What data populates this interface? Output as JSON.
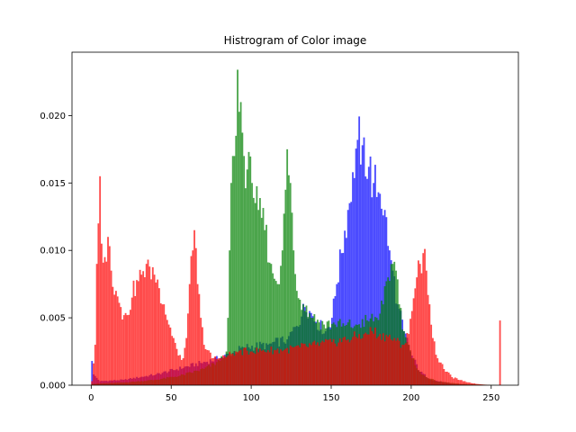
{
  "chart_data": {
    "type": "bar",
    "title": "Histrogram of Color image",
    "xlabel": "",
    "ylabel": "",
    "xlim": [
      -12,
      267
    ],
    "ylim": [
      0,
      0.0247
    ],
    "xticks": [
      0,
      50,
      100,
      150,
      200,
      250
    ],
    "yticks": [
      0.0,
      0.005,
      0.01,
      0.015,
      0.02
    ],
    "ytick_labels": [
      "0.000",
      "0.005",
      "0.010",
      "0.015",
      "0.020"
    ],
    "grid": false,
    "legend": "none",
    "bins": 256,
    "series": [
      {
        "color": "#0000ff",
        "alpha": 0.7,
        "control_points": [
          [
            0,
            0.0018
          ],
          [
            1,
            0.0008
          ],
          [
            5,
            0.0003
          ],
          [
            20,
            0.0004
          ],
          [
            40,
            0.0008
          ],
          [
            60,
            0.0014
          ],
          [
            80,
            0.002
          ],
          [
            95,
            0.0028
          ],
          [
            110,
            0.003
          ],
          [
            122,
            0.0034
          ],
          [
            128,
            0.0044
          ],
          [
            133,
            0.0058
          ],
          [
            136,
            0.0055
          ],
          [
            140,
            0.0047
          ],
          [
            146,
            0.004
          ],
          [
            150,
            0.005
          ],
          [
            153,
            0.0075
          ],
          [
            156,
            0.0098
          ],
          [
            160,
            0.013
          ],
          [
            163,
            0.0158
          ],
          [
            166,
            0.0182
          ],
          [
            169,
            0.0178
          ],
          [
            173,
            0.0162
          ],
          [
            176,
            0.015
          ],
          [
            180,
            0.0142
          ],
          [
            183,
            0.013
          ],
          [
            186,
            0.01
          ],
          [
            188,
            0.0085
          ],
          [
            191,
            0.006
          ],
          [
            195,
            0.004
          ],
          [
            200,
            0.0022
          ],
          [
            205,
            0.001
          ],
          [
            212,
            0.0004
          ],
          [
            225,
            0.0001
          ],
          [
            240,
            0.0
          ],
          [
            255,
            0.0
          ]
        ]
      },
      {
        "color": "#008000",
        "alpha": 0.7,
        "control_points": [
          [
            0,
            0.0001
          ],
          [
            20,
            0.0002
          ],
          [
            40,
            0.0004
          ],
          [
            55,
            0.0007
          ],
          [
            70,
            0.0012
          ],
          [
            80,
            0.0018
          ],
          [
            84,
            0.0025
          ],
          [
            85,
            0.005
          ],
          [
            86,
            0.01
          ],
          [
            87,
            0.015
          ],
          [
            88,
            0.017
          ],
          [
            90,
            0.0185
          ],
          [
            91,
            0.0234
          ],
          [
            93,
            0.021
          ],
          [
            95,
            0.017
          ],
          [
            97,
            0.016
          ],
          [
            100,
            0.015
          ],
          [
            104,
            0.013
          ],
          [
            108,
            0.0115
          ],
          [
            112,
            0.009
          ],
          [
            116,
            0.0075
          ],
          [
            119,
            0.01
          ],
          [
            121,
            0.0145
          ],
          [
            122,
            0.0175
          ],
          [
            124,
            0.015
          ],
          [
            126,
            0.01
          ],
          [
            128,
            0.007
          ],
          [
            132,
            0.006
          ],
          [
            138,
            0.005
          ],
          [
            145,
            0.0045
          ],
          [
            152,
            0.0045
          ],
          [
            158,
            0.0044
          ],
          [
            165,
            0.0045
          ],
          [
            172,
            0.0048
          ],
          [
            178,
            0.005
          ],
          [
            182,
            0.006
          ],
          [
            185,
            0.008
          ],
          [
            188,
            0.009
          ],
          [
            190,
            0.0085
          ],
          [
            192,
            0.006
          ],
          [
            195,
            0.004
          ],
          [
            200,
            0.002
          ],
          [
            206,
            0.0008
          ],
          [
            215,
            0.0003
          ],
          [
            230,
            0.0001
          ],
          [
            255,
            0.0
          ]
        ]
      },
      {
        "color": "#ff0000",
        "alpha": 0.7,
        "control_points": [
          [
            0,
            0.0003
          ],
          [
            2,
            0.003
          ],
          [
            3,
            0.009
          ],
          [
            4,
            0.012
          ],
          [
            5,
            0.0155
          ],
          [
            6,
            0.0105
          ],
          [
            8,
            0.0095
          ],
          [
            10,
            0.011
          ],
          [
            12,
            0.0085
          ],
          [
            15,
            0.007
          ],
          [
            18,
            0.0058
          ],
          [
            20,
            0.0052
          ],
          [
            22,
            0.0052
          ],
          [
            25,
            0.0065
          ],
          [
            28,
            0.0078
          ],
          [
            31,
            0.0082
          ],
          [
            34,
            0.009
          ],
          [
            36,
            0.0088
          ],
          [
            39,
            0.0082
          ],
          [
            42,
            0.0072
          ],
          [
            45,
            0.006
          ],
          [
            48,
            0.0045
          ],
          [
            51,
            0.0035
          ],
          [
            54,
            0.0022
          ],
          [
            57,
            0.002
          ],
          [
            59,
            0.0035
          ],
          [
            61,
            0.0075
          ],
          [
            63,
            0.01
          ],
          [
            64,
            0.0115
          ],
          [
            66,
            0.0075
          ],
          [
            68,
            0.005
          ],
          [
            70,
            0.003
          ],
          [
            75,
            0.002
          ],
          [
            80,
            0.002
          ],
          [
            85,
            0.0022
          ],
          [
            90,
            0.0025
          ],
          [
            100,
            0.0025
          ],
          [
            110,
            0.0026
          ],
          [
            120,
            0.0026
          ],
          [
            130,
            0.0028
          ],
          [
            140,
            0.003
          ],
          [
            150,
            0.0032
          ],
          [
            160,
            0.0034
          ],
          [
            165,
            0.0036
          ],
          [
            170,
            0.0038
          ],
          [
            175,
            0.004
          ],
          [
            180,
            0.0038
          ],
          [
            185,
            0.0036
          ],
          [
            190,
            0.0033
          ],
          [
            195,
            0.003
          ],
          [
            198,
            0.0038
          ],
          [
            200,
            0.0055
          ],
          [
            203,
            0.008
          ],
          [
            205,
            0.009
          ],
          [
            207,
            0.0098
          ],
          [
            209,
            0.0085
          ],
          [
            211,
            0.006
          ],
          [
            213,
            0.0035
          ],
          [
            216,
            0.002
          ],
          [
            220,
            0.0012
          ],
          [
            225,
            0.0006
          ],
          [
            232,
            0.0003
          ],
          [
            240,
            0.0001
          ],
          [
            250,
            0.0
          ],
          [
            254,
            0.0
          ],
          [
            255,
            0.0048
          ]
        ]
      }
    ]
  }
}
